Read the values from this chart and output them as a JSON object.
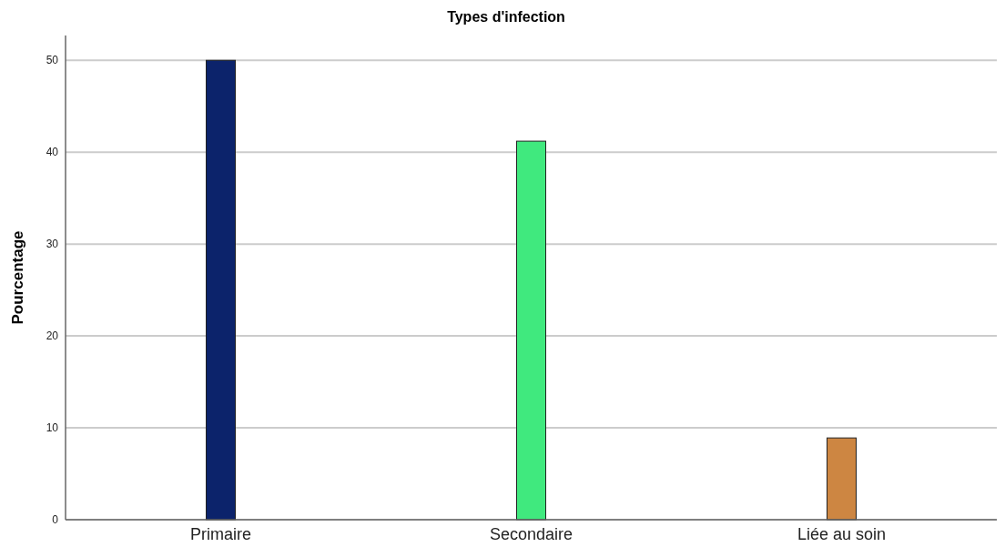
{
  "chart_data": {
    "type": "bar",
    "title": "Types d'infection",
    "ylabel": "Pourcentage",
    "categories": [
      "Primaire",
      "Secondaire",
      "Liée au soin"
    ],
    "values": [
      50,
      41.2,
      8.9
    ],
    "colors": [
      "#0c236b",
      "#40e97e",
      "#cd8642"
    ],
    "ylim": [
      0,
      52.7
    ],
    "yticks": [
      0,
      10,
      20,
      30,
      40,
      50
    ],
    "grid": "y"
  }
}
